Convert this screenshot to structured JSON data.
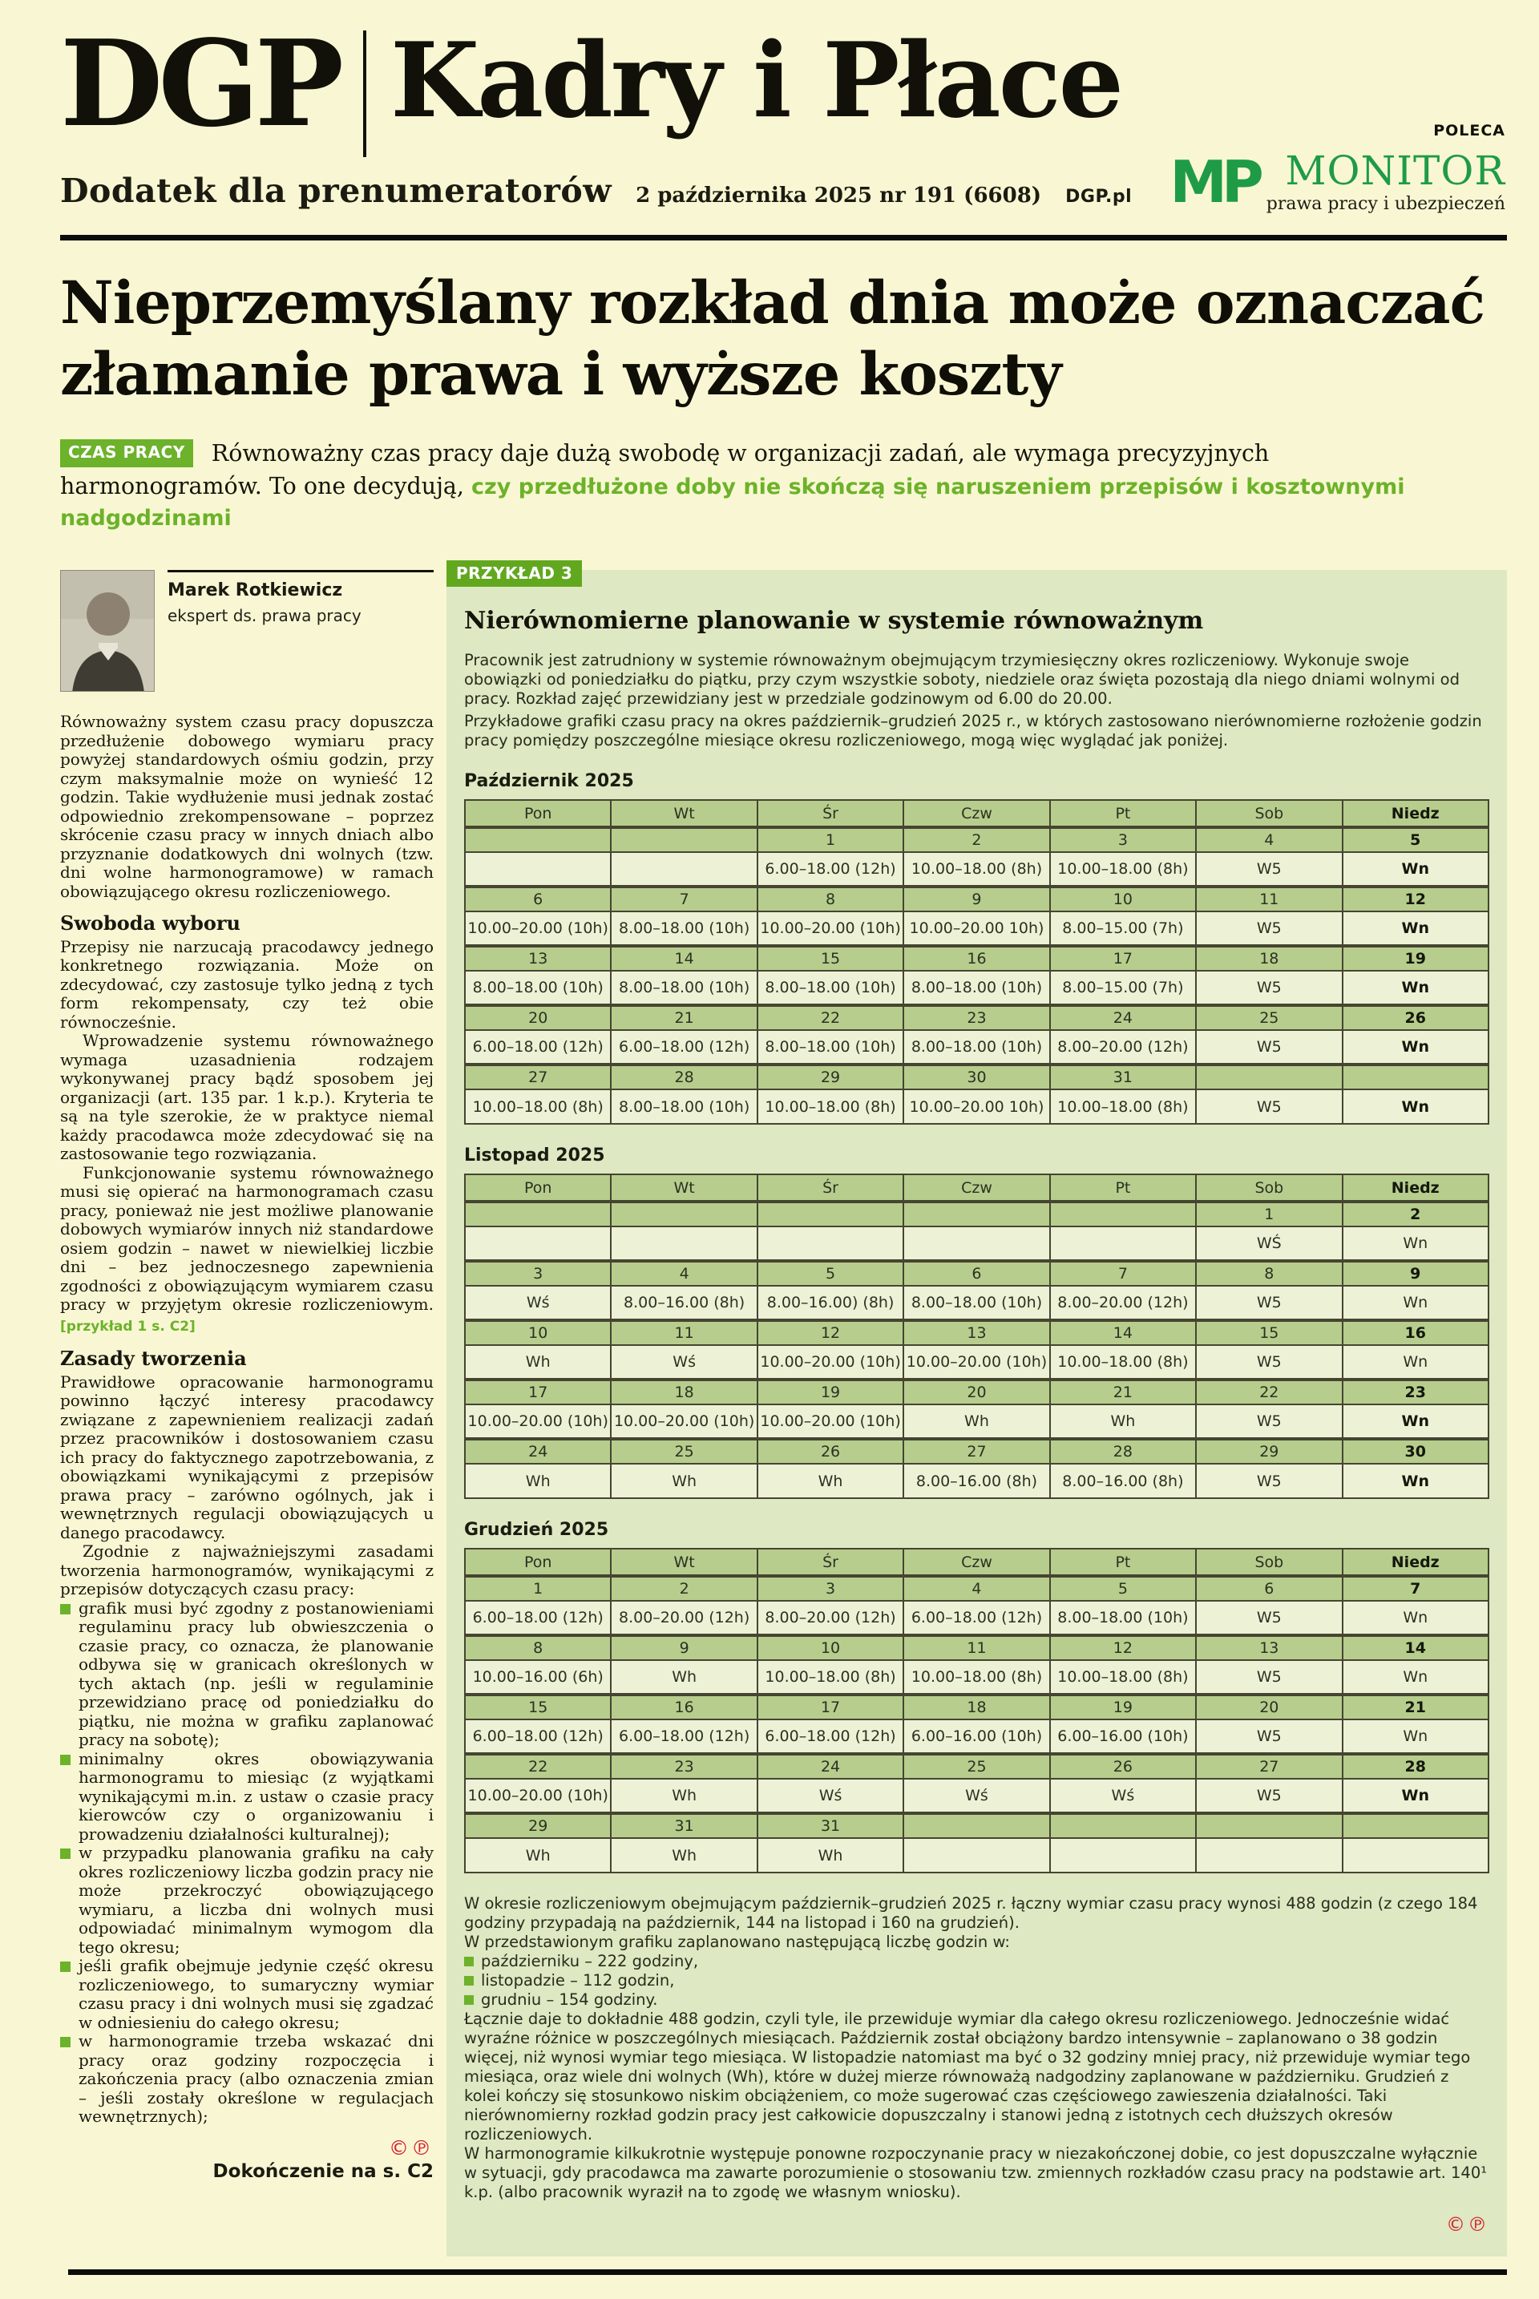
{
  "header": {
    "brand": "DGP",
    "section": "Kadry i Płace",
    "subtitle": "Dodatek dla prenumeratorów",
    "date_line": "2 października 2025 nr 191 (6608)",
    "site": "DGP.pl",
    "monitor": {
      "poleca": "POLECA",
      "mp": "MP",
      "name": "MONITOR",
      "tagline": "prawa pracy i ubezpieczeń"
    }
  },
  "headline": {
    "line1": "Nieprzemyślany rozkład dnia może oznaczać",
    "line2": "złamanie prawa i wyższe koszty"
  },
  "lead": {
    "kicker": "CZAS PRACY",
    "text_black": "Równoważny czas pracy daje dużą swobodę w organizacji zadań, ale wymaga precyzyjnych harmonogramów. To one decydują, ",
    "text_green": "czy przedłużone doby nie skończą się naruszeniem przepisów i kosztownymi nadgodzinami"
  },
  "author": {
    "name": "Marek Rotkiewicz",
    "role": "ekspert ds. prawa pracy"
  },
  "article": {
    "blocks": [
      {
        "type": "p",
        "text": "Równoważny system czasu pracy dopuszcza przedłużenie dobowego wymiaru pracy powyżej standardowych ośmiu godzin, przy czym maksymalnie może on wynieść 12 godzin. Takie wydłużenie musi jednak zostać odpowiednio zrekompensowane – poprzez skrócenie czasu pracy w innych dniach albo przyznanie dodatkowych dni wolnych (tzw. dni wolne harmonogramowe) w ramach obowiązującego okresu rozliczeniowego."
      },
      {
        "type": "h2",
        "text": "Swoboda wyboru"
      },
      {
        "type": "p",
        "text": "Przepisy nie narzucają pracodawcy jednego konkretnego rozwiązania. Może on zdecydować, czy zastosuje tylko jedną z tych form rekompensaty, czy też obie równocześnie."
      },
      {
        "type": "p",
        "indent": true,
        "text": "Wprowadzenie systemu równoważnego wymaga uzasadnienia rodzajem wykonywanej pracy bądź sposobem jej organizacji (art. 135 par. 1 k.p.). Kryteria te są na tyle szerokie, że w praktyce niemal każdy pracodawca może zdecydować się na zastosowanie tego rozwiązania."
      },
      {
        "type": "p",
        "indent": true,
        "text": "Funkcjonowanie systemu równoważnego musi się opierać na harmonogramach czasu pracy, ponieważ nie jest możliwe planowanie dobowych wymiarów innych niż standardowe osiem godzin – nawet w niewielkiej liczbie dni – bez jednoczesnego zapewnienia zgodności z obowiązującym wymiarem czasu pracy w przyjętym okresie rozliczeniowym.",
        "link": "[przykład 1 s. C2]"
      },
      {
        "type": "h2",
        "text": "Zasady tworzenia"
      },
      {
        "type": "p",
        "text": "Prawidłowe opracowanie harmonogramu powinno łączyć interesy pracodawcy związane z zapewnieniem realizacji zadań przez pracowników i dostosowaniem czasu ich pracy do faktycznego zapotrzebowania, z obowiązkami wynikającymi z przepisów prawa pracy – zarówno ogólnych, jak i wewnętrznych regulacji obowiązujących u danego pracodawcy."
      },
      {
        "type": "p",
        "indent": true,
        "text": "Zgodnie z najważniejszymi zasadami tworzenia harmonogramów, wynikającymi z przepisów dotyczących czasu pracy:"
      },
      {
        "type": "bullet",
        "text": "grafik musi być zgodny z postanowieniami regulaminu pracy lub obwieszczenia o czasie pracy, co oznacza, że planowanie odbywa się w granicach określonych w tych aktach (np. jeśli w regulaminie przewidziano pracę od poniedziałku do piątku, nie można w grafiku zaplanować pracy na sobotę);"
      },
      {
        "type": "bullet",
        "text": "minimalny okres obowiązywania harmonogramu to miesiąc (z wyjątkami wynikającymi m.in. z ustaw o czasie pracy kierowców czy o organizowaniu i prowadzeniu działalności kulturalnej);"
      },
      {
        "type": "bullet",
        "text": "w przypadku planowania grafiku na cały okres rozliczeniowy liczba godzin pracy nie może przekroczyć obowiązującego wymiaru, a liczba dni wolnych musi odpowiadać minimalnym wymogom dla tego okresu;"
      },
      {
        "type": "bullet",
        "text": "jeśli grafik obejmuje jedynie część okresu rozliczeniowego, to sumaryczny wymiar czasu pracy i dni wolnych musi się zgadzać w odniesieniu do całego okresu;"
      },
      {
        "type": "bullet",
        "text": "w harmonogramie trzeba wskazać dni pracy oraz godziny rozpoczęcia i zakończenia pracy (albo oznaczenia zmian – jeśli zostały określone w regulacjach wewnętrznych);"
      }
    ]
  },
  "footer": {
    "copyright": "©℗",
    "continuation": "Dokończenie na s. C2"
  },
  "example_box": {
    "badge": "PRZYKŁAD 3",
    "title": "Nierównomierne planowanie w systemie równoważnym",
    "intro": [
      "Pracownik jest zatrudniony w systemie równoważnym obejmującym trzymiesięczny okres rozliczeniowy. Wykonuje swoje obowiązki od poniedziałku do piątku, przy czym wszystkie soboty, niedziele oraz święta pozostają dla niego dniami wolnymi od pracy. Rozkład zajęć przewidziany jest w przedziale godzinowym od 6.00 do 20.00.",
      "Przykładowe grafiki czasu pracy na okres październik–grudzień 2025 r., w których zastosowano nierównomierne rozłożenie godzin pracy pomiędzy poszczególne miesiące okresu rozliczeniowego, mogą więc wyglądać jak poniżej."
    ],
    "day_headers": [
      "Pon",
      "Wt",
      "Śr",
      "Czw",
      "Pt",
      "Sob",
      "Niedz"
    ],
    "months": [
      {
        "label": "Październik 2025",
        "weeks": [
          {
            "dates": [
              "",
              "",
              "1",
              "2",
              "3",
              "4",
              "5"
            ],
            "hours": [
              "",
              "",
              "6.00–18.00 (12h)",
              "10.00–18.00 (8h)",
              "10.00–18.00 (8h)",
              "W5",
              "Wn"
            ],
            "wn_bold": true
          },
          {
            "dates": [
              "6",
              "7",
              "8",
              "9",
              "10",
              "11",
              "12"
            ],
            "hours": [
              "10.00–20.00 (10h)",
              "8.00–18.00 (10h)",
              "10.00–20.00 (10h)",
              "10.00–20.00 10h)",
              "8.00–15.00 (7h)",
              "W5",
              "Wn"
            ],
            "wn_bold": true
          },
          {
            "dates": [
              "13",
              "14",
              "15",
              "16",
              "17",
              "18",
              "19"
            ],
            "hours": [
              "8.00–18.00 (10h)",
              "8.00–18.00 (10h)",
              "8.00–18.00 (10h)",
              "8.00–18.00 (10h)",
              "8.00–15.00 (7h)",
              "W5",
              "Wn"
            ],
            "wn_bold": true
          },
          {
            "dates": [
              "20",
              "21",
              "22",
              "23",
              "24",
              "25",
              "26"
            ],
            "hours": [
              "6.00–18.00 (12h)",
              "6.00–18.00 (12h)",
              "8.00–18.00 (10h)",
              "8.00–18.00 (10h)",
              "8.00–20.00 (12h)",
              "W5",
              "Wn"
            ],
            "wn_bold": true
          },
          {
            "dates": [
              "27",
              "28",
              "29",
              "30",
              "31",
              "",
              ""
            ],
            "hours": [
              "10.00–18.00 (8h)",
              "8.00–18.00 (10h)",
              "10.00–18.00 (8h)",
              "10.00–20.00 10h)",
              "10.00–18.00 (8h)",
              "W5",
              "Wn"
            ],
            "wn_bold": true
          }
        ]
      },
      {
        "label": "Listopad 2025",
        "weeks": [
          {
            "dates": [
              "",
              "",
              "",
              "",
              "",
              "1",
              "2"
            ],
            "hours": [
              "",
              "",
              "",
              "",
              "",
              "WŚ",
              "Wn"
            ],
            "wn_bold": false
          },
          {
            "dates": [
              "3",
              "4",
              "5",
              "6",
              "7",
              "8",
              "9"
            ],
            "hours": [
              "Wś",
              "8.00–16.00 (8h)",
              "8.00–16.00) (8h)",
              "8.00–18.00 (10h)",
              "8.00–20.00 (12h)",
              "W5",
              "Wn"
            ],
            "wn_bold": false
          },
          {
            "dates": [
              "10",
              "11",
              "12",
              "13",
              "14",
              "15",
              "16"
            ],
            "hours": [
              "Wh",
              "Wś",
              "10.00–20.00 (10h)",
              "10.00–20.00 (10h)",
              "10.00–18.00 (8h)",
              "W5",
              "Wn"
            ],
            "wn_bold": false
          },
          {
            "dates": [
              "17",
              "18",
              "19",
              "20",
              "21",
              "22",
              "23"
            ],
            "hours": [
              "10.00–20.00 (10h)",
              "10.00–20.00 (10h)",
              "10.00–20.00 (10h)",
              "Wh",
              "Wh",
              "W5",
              "Wn"
            ],
            "wn_bold": true
          },
          {
            "dates": [
              "24",
              "25",
              "26",
              "27",
              "28",
              "29",
              "30"
            ],
            "hours": [
              "Wh",
              "Wh",
              "Wh",
              "8.00–16.00 (8h)",
              "8.00–16.00 (8h)",
              "W5",
              "Wn"
            ],
            "wn_bold": true
          }
        ]
      },
      {
        "label": "Grudzień 2025",
        "weeks": [
          {
            "dates": [
              "1",
              "2",
              "3",
              "4",
              "5",
              "6",
              "7"
            ],
            "hours": [
              "6.00–18.00 (12h)",
              "8.00–20.00 (12h)",
              "8.00–20.00 (12h)",
              "6.00–18.00 (12h)",
              "8.00–18.00 (10h)",
              "W5",
              "Wn"
            ],
            "wn_bold": false
          },
          {
            "dates": [
              "8",
              "9",
              "10",
              "11",
              "12",
              "13",
              "14"
            ],
            "hours": [
              "10.00–16.00 (6h)",
              "Wh",
              "10.00–18.00 (8h)",
              "10.00–18.00 (8h)",
              "10.00–18.00 (8h)",
              "W5",
              "Wn"
            ],
            "wn_bold": false
          },
          {
            "dates": [
              "15",
              "16",
              "17",
              "18",
              "19",
              "20",
              "21"
            ],
            "hours": [
              "6.00–18.00 (12h)",
              "6.00–18.00 (12h)",
              "6.00–18.00 (12h)",
              "6.00–16.00 (10h)",
              "6.00–16.00 (10h)",
              "W5",
              "Wn"
            ],
            "wn_bold": false
          },
          {
            "dates": [
              "22",
              "23",
              "24",
              "25",
              "26",
              "27",
              "28"
            ],
            "hours": [
              "10.00–20.00 (10h)",
              "Wh",
              "Wś",
              "Wś",
              "Wś",
              "W5",
              "Wn"
            ],
            "wn_bold": true
          },
          {
            "dates": [
              "29",
              "31",
              "31",
              "",
              "",
              "",
              ""
            ],
            "hours": [
              "Wh",
              "Wh",
              "Wh",
              "",
              "",
              "",
              ""
            ],
            "wn_bold": false
          }
        ]
      }
    ],
    "summary_blocks": [
      {
        "type": "p",
        "text": "W okresie rozliczeniowym obejmującym październik–grudzień 2025 r. łączny wymiar czasu pracy wynosi 488 godzin (z czego 184 godziny przypadają na październik, 144 na listopad i 160 na grudzień)."
      },
      {
        "type": "p",
        "text": "W przedstawionym grafiku zaplanowano następującą liczbę godzin w:"
      },
      {
        "type": "bullet",
        "text": "październiku – 222 godziny,"
      },
      {
        "type": "bullet",
        "text": "listopadzie – 112 godzin,"
      },
      {
        "type": "bullet",
        "text": "grudniu – 154 godziny."
      },
      {
        "type": "p",
        "text": "Łącznie daje to dokładnie 488 godzin, czyli tyle, ile przewiduje wymiar dla całego okresu rozliczeniowego. Jednocześnie widać wyraźne różnice w poszczególnych miesiącach. Październik został obciążony bardzo intensywnie – zaplanowano o 38 godzin więcej, niż wynosi wymiar tego miesiąca. W listopadzie natomiast ma być o 32 godziny mniej pracy, niż przewiduje wymiar tego miesiąca, oraz wiele dni wolnych (Wh), które w dużej mierze równoważą nadgodziny zaplanowane w październiku. Grudzień z kolei kończy się stosunkowo niskim obciążeniem, co może sugerować czas częściowego zawieszenia działalności. Taki nierównomierny rozkład godzin pracy jest całkowicie dopuszczalny i stanowi jedną z istotnych cech dłuższych okresów rozliczeniowych."
      },
      {
        "type": "p",
        "text": "W harmonogramie kilkukrotnie występuje ponowne rozpoczynanie pracy w niezakończonej dobie, co jest dopuszczalne wyłącznie w sytuacji, gdy pracodawca ma zawarte porozumienie o stosowaniu tzw. zmiennych rozkładów czasu pracy na podstawie art. 140¹ k.p. (albo pracownik wyraził na to zgodę we własnym wniosku)."
      }
    ],
    "copyright": "©℗"
  }
}
